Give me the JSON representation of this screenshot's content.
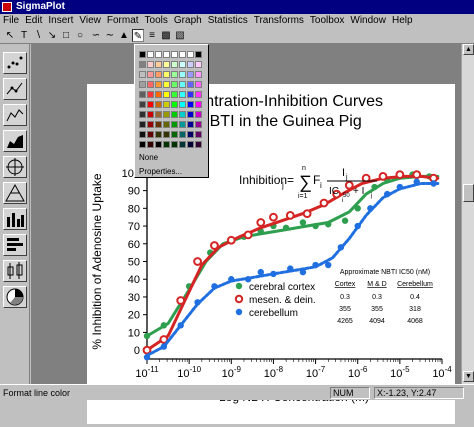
{
  "window": {
    "title": "SigmaPlot"
  },
  "menu": [
    "File",
    "Edit",
    "Insert",
    "View",
    "Format",
    "Tools",
    "Graph",
    "Statistics",
    "Transforms",
    "Toolbox",
    "Window",
    "Help"
  ],
  "toolbar": {
    "text_tool": "T"
  },
  "color_popup": {
    "none_label": "None",
    "properties_label": "Properties..."
  },
  "chart_data": {
    "type": "scatter",
    "title_line1": "Concentration-Inhibition Curves",
    "title_line2": "of NBTI in the Guinea Pig",
    "xlabel": "Log NBTI Concentration (M)",
    "ylabel": "% Inhibition of Adenosine Uptake",
    "x_tick_labels": [
      "10-11",
      "10-10",
      "10-9",
      "10-8",
      "10-7",
      "10-6",
      "10-5",
      "10-4"
    ],
    "y_tick_labels": [
      "0",
      "10",
      "20",
      "30",
      "40",
      "50",
      "60",
      "70",
      "80",
      "90",
      "100"
    ],
    "xlim_log": [
      -11,
      -4
    ],
    "ylim": [
      -5,
      105
    ],
    "equation": {
      "lhs": "Inhibition",
      "lhs_sub": "j",
      "sum_top": "n",
      "sum_bottom": "i=1",
      "term": "F",
      "term_sub": "i",
      "num": "I",
      "num_sub": "j",
      "den_a": "IC",
      "den_a_sub": "50",
      "den_sub2": "i",
      "den_b": "+ I",
      "den_b_sub": "j"
    },
    "series": [
      {
        "name": "cerebral cortex",
        "color": "#2e9e4f",
        "points": [
          [
            -11,
            8
          ],
          [
            -10.6,
            14
          ],
          [
            -10,
            36
          ],
          [
            -9.5,
            55
          ],
          [
            -9,
            62
          ],
          [
            -8.7,
            64
          ],
          [
            -8.3,
            67
          ],
          [
            -8,
            70
          ],
          [
            -7.7,
            69
          ],
          [
            -7.3,
            72
          ],
          [
            -7,
            70
          ],
          [
            -6.7,
            71
          ],
          [
            -6.3,
            73
          ],
          [
            -6,
            80
          ],
          [
            -5.6,
            92
          ],
          [
            -5.3,
            96
          ],
          [
            -5,
            98
          ],
          [
            -4.7,
            99
          ],
          [
            -4.3,
            98
          ]
        ],
        "curve": [
          [
            -11,
            8
          ],
          [
            -10.5,
            15
          ],
          [
            -10,
            34
          ],
          [
            -9.6,
            50
          ],
          [
            -9.2,
            60
          ],
          [
            -8.7,
            64
          ],
          [
            -8.2,
            66
          ],
          [
            -7.7,
            68
          ],
          [
            -7.2,
            70
          ],
          [
            -6.7,
            72
          ],
          [
            -6.2,
            78
          ],
          [
            -5.8,
            88
          ],
          [
            -5.4,
            94
          ],
          [
            -5,
            97
          ],
          [
            -4.5,
            98
          ],
          [
            -4.1,
            98
          ]
        ]
      },
      {
        "name": "mesen. & dein.",
        "color": "#d42424",
        "points": [
          [
            -11,
            0
          ],
          [
            -10.6,
            6
          ],
          [
            -10.2,
            28
          ],
          [
            -9.8,
            50
          ],
          [
            -9.4,
            59
          ],
          [
            -9,
            62
          ],
          [
            -8.6,
            65
          ],
          [
            -8.3,
            72
          ],
          [
            -8,
            75
          ],
          [
            -7.6,
            76
          ],
          [
            -7.2,
            77
          ],
          [
            -6.8,
            83
          ],
          [
            -6.5,
            88
          ],
          [
            -6.2,
            93
          ],
          [
            -5.8,
            97
          ],
          [
            -5.4,
            98
          ],
          [
            -5,
            99
          ],
          [
            -4.6,
            99
          ],
          [
            -4.2,
            97
          ]
        ],
        "curve": [
          [
            -11,
            0
          ],
          [
            -10.5,
            8
          ],
          [
            -10.1,
            28
          ],
          [
            -9.7,
            48
          ],
          [
            -9.3,
            58
          ],
          [
            -8.8,
            64
          ],
          [
            -8.3,
            69
          ],
          [
            -7.8,
            73
          ],
          [
            -7.3,
            77
          ],
          [
            -6.8,
            82
          ],
          [
            -6.3,
            89
          ],
          [
            -5.9,
            94
          ],
          [
            -5.4,
            97
          ],
          [
            -4.9,
            98
          ],
          [
            -4.5,
            98
          ],
          [
            -4.1,
            97
          ]
        ]
      },
      {
        "name": "cerebellum",
        "color": "#1f6fe0",
        "points": [
          [
            -11,
            -4
          ],
          [
            -10.6,
            2
          ],
          [
            -10.2,
            14
          ],
          [
            -9.8,
            27
          ],
          [
            -9.4,
            36
          ],
          [
            -9,
            40
          ],
          [
            -8.6,
            40
          ],
          [
            -8.3,
            44
          ],
          [
            -8,
            43
          ],
          [
            -7.6,
            46
          ],
          [
            -7.3,
            44
          ],
          [
            -7,
            48
          ],
          [
            -6.7,
            48
          ],
          [
            -6.4,
            58
          ],
          [
            -6,
            70
          ],
          [
            -5.7,
            80
          ],
          [
            -5.3,
            88
          ],
          [
            -5,
            92
          ],
          [
            -4.6,
            95
          ],
          [
            -4.2,
            94
          ]
        ],
        "curve": [
          [
            -11,
            -3
          ],
          [
            -10.6,
            2
          ],
          [
            -10.2,
            14
          ],
          [
            -9.8,
            26
          ],
          [
            -9.4,
            35
          ],
          [
            -9,
            39
          ],
          [
            -8.5,
            41
          ],
          [
            -8,
            43
          ],
          [
            -7.5,
            45
          ],
          [
            -7,
            47
          ],
          [
            -6.6,
            52
          ],
          [
            -6.2,
            63
          ],
          [
            -5.8,
            76
          ],
          [
            -5.4,
            86
          ],
          [
            -5,
            91
          ],
          [
            -4.5,
            94
          ],
          [
            -4.1,
            94
          ]
        ]
      }
    ]
  },
  "ic50_table": {
    "title": "Approximate NBTI IC50 (nM)",
    "headers": [
      "Cortex",
      "M & D",
      "Cerebellum"
    ],
    "rows": [
      [
        "0.3",
        "0.3",
        "0.4"
      ],
      [
        "355",
        "355",
        "318"
      ],
      [
        "4265",
        "4094",
        "4068"
      ]
    ]
  },
  "status": {
    "hint": "Format line color",
    "num": "NUM",
    "coords": "X:-1.23, Y:2.47"
  }
}
